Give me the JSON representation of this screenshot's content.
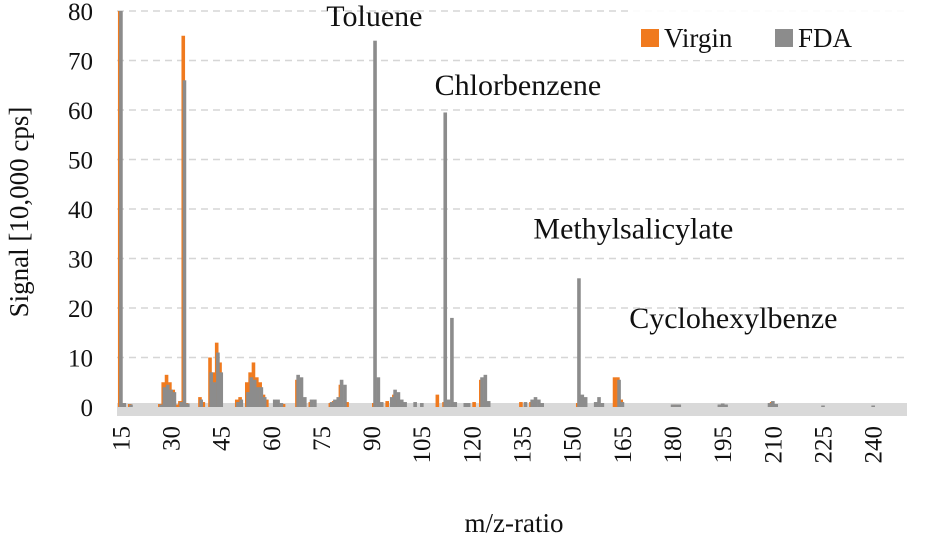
{
  "chart_data": {
    "type": "bar",
    "xlabel": "m/z-ratio",
    "ylabel": "Signal [10,000 cps]",
    "ylim": [
      0,
      80
    ],
    "xlim": [
      14,
      250
    ],
    "y_ticks": [
      "0",
      "10",
      "20",
      "30",
      "40",
      "50",
      "60",
      "70",
      "80"
    ],
    "x_ticks": [
      "15",
      "30",
      "45",
      "60",
      "75",
      "90",
      "105",
      "120",
      "135",
      "150",
      "165",
      "180",
      "195",
      "210",
      "225",
      "240"
    ],
    "grid": true,
    "legend_position": "top-right",
    "series": [
      {
        "name": "Virgin",
        "color": "#f07a1e",
        "points": [
          {
            "x": 15,
            "y": 80
          },
          {
            "x": 16,
            "y": 0.8
          },
          {
            "x": 18,
            "y": 0.6
          },
          {
            "x": 27,
            "y": 0.6
          },
          {
            "x": 28,
            "y": 5
          },
          {
            "x": 29,
            "y": 6.5
          },
          {
            "x": 30,
            "y": 5
          },
          {
            "x": 31,
            "y": 3.5
          },
          {
            "x": 32,
            "y": 0.5
          },
          {
            "x": 33,
            "y": 1.2
          },
          {
            "x": 34,
            "y": 75
          },
          {
            "x": 35,
            "y": 0.8
          },
          {
            "x": 39,
            "y": 2
          },
          {
            "x": 40,
            "y": 1
          },
          {
            "x": 42,
            "y": 10
          },
          {
            "x": 43,
            "y": 7
          },
          {
            "x": 44,
            "y": 13
          },
          {
            "x": 45,
            "y": 9
          },
          {
            "x": 50,
            "y": 1.5
          },
          {
            "x": 51,
            "y": 2
          },
          {
            "x": 53,
            "y": 5
          },
          {
            "x": 54,
            "y": 7
          },
          {
            "x": 55,
            "y": 9
          },
          {
            "x": 56,
            "y": 6
          },
          {
            "x": 57,
            "y": 5
          },
          {
            "x": 58,
            "y": 2.5
          },
          {
            "x": 59,
            "y": 1.5
          },
          {
            "x": 64,
            "y": 0.6
          },
          {
            "x": 68,
            "y": 5.5
          },
          {
            "x": 70,
            "y": 1
          },
          {
            "x": 72,
            "y": 1
          },
          {
            "x": 78,
            "y": 0.8
          },
          {
            "x": 79,
            "y": 1.2
          },
          {
            "x": 81,
            "y": 4.5
          },
          {
            "x": 83,
            "y": 1
          },
          {
            "x": 91,
            "y": 0.8
          },
          {
            "x": 95,
            "y": 1.2
          },
          {
            "x": 97,
            "y": 2.5
          },
          {
            "x": 98,
            "y": 1.5
          },
          {
            "x": 110,
            "y": 2.5
          },
          {
            "x": 112,
            "y": 1
          },
          {
            "x": 121,
            "y": 1
          },
          {
            "x": 123,
            "y": 5.5
          },
          {
            "x": 124,
            "y": 1.2
          },
          {
            "x": 135,
            "y": 1
          },
          {
            "x": 138,
            "y": 1
          },
          {
            "x": 139,
            "y": 0.8
          },
          {
            "x": 152,
            "y": 0.8
          },
          {
            "x": 163,
            "y": 6
          },
          {
            "x": 164,
            "y": 6
          },
          {
            "x": 165,
            "y": 1.5
          },
          {
            "x": 181,
            "y": 0.5
          },
          {
            "x": 195,
            "y": 0.5
          },
          {
            "x": 210,
            "y": 1
          }
        ]
      },
      {
        "name": "FDA",
        "color": "#8c8c8c",
        "points": [
          {
            "x": 15,
            "y": 80
          },
          {
            "x": 16,
            "y": 0.8
          },
          {
            "x": 18,
            "y": 0.5
          },
          {
            "x": 27,
            "y": 0.5
          },
          {
            "x": 28,
            "y": 4
          },
          {
            "x": 29,
            "y": 4.5
          },
          {
            "x": 30,
            "y": 3.5
          },
          {
            "x": 31,
            "y": 3
          },
          {
            "x": 33,
            "y": 1
          },
          {
            "x": 34,
            "y": 66
          },
          {
            "x": 35,
            "y": 0.7
          },
          {
            "x": 39,
            "y": 1.5
          },
          {
            "x": 42,
            "y": 7
          },
          {
            "x": 43,
            "y": 5
          },
          {
            "x": 44,
            "y": 11
          },
          {
            "x": 45,
            "y": 7
          },
          {
            "x": 50,
            "y": 1
          },
          {
            "x": 51,
            "y": 1.5
          },
          {
            "x": 53,
            "y": 3
          },
          {
            "x": 54,
            "y": 6
          },
          {
            "x": 55,
            "y": 5.5
          },
          {
            "x": 56,
            "y": 4
          },
          {
            "x": 57,
            "y": 4
          },
          {
            "x": 58,
            "y": 2
          },
          {
            "x": 61,
            "y": 1.5
          },
          {
            "x": 62,
            "y": 1.5
          },
          {
            "x": 63,
            "y": 0.8
          },
          {
            "x": 68,
            "y": 6.5
          },
          {
            "x": 69,
            "y": 6
          },
          {
            "x": 70,
            "y": 2
          },
          {
            "x": 72,
            "y": 1.5
          },
          {
            "x": 73,
            "y": 1.5
          },
          {
            "x": 78,
            "y": 1
          },
          {
            "x": 79,
            "y": 1.5
          },
          {
            "x": 80,
            "y": 2
          },
          {
            "x": 81,
            "y": 5.5
          },
          {
            "x": 82,
            "y": 4.5
          },
          {
            "x": 91,
            "y": 74
          },
          {
            "x": 92,
            "y": 6
          },
          {
            "x": 93,
            "y": 1
          },
          {
            "x": 96,
            "y": 2
          },
          {
            "x": 97,
            "y": 3.5
          },
          {
            "x": 98,
            "y": 3
          },
          {
            "x": 99,
            "y": 1.5
          },
          {
            "x": 100,
            "y": 1
          },
          {
            "x": 103,
            "y": 1
          },
          {
            "x": 105,
            "y": 0.8
          },
          {
            "x": 112,
            "y": 59.5
          },
          {
            "x": 113,
            "y": 1.5
          },
          {
            "x": 114,
            "y": 18
          },
          {
            "x": 115,
            "y": 1
          },
          {
            "x": 118,
            "y": 0.8
          },
          {
            "x": 119,
            "y": 0.8
          },
          {
            "x": 123,
            "y": 6
          },
          {
            "x": 124,
            "y": 6.5
          },
          {
            "x": 125,
            "y": 1.2
          },
          {
            "x": 136,
            "y": 1
          },
          {
            "x": 138,
            "y": 1.5
          },
          {
            "x": 139,
            "y": 2
          },
          {
            "x": 140,
            "y": 1.5
          },
          {
            "x": 141,
            "y": 0.8
          },
          {
            "x": 152,
            "y": 26
          },
          {
            "x": 153,
            "y": 2.5
          },
          {
            "x": 154,
            "y": 2
          },
          {
            "x": 157,
            "y": 1
          },
          {
            "x": 158,
            "y": 2
          },
          {
            "x": 159,
            "y": 0.8
          },
          {
            "x": 164,
            "y": 5.5
          },
          {
            "x": 165,
            "y": 1
          },
          {
            "x": 180,
            "y": 0.5
          },
          {
            "x": 181,
            "y": 0.5
          },
          {
            "x": 182,
            "y": 0.5
          },
          {
            "x": 194,
            "y": 0.5
          },
          {
            "x": 195,
            "y": 0.7
          },
          {
            "x": 196,
            "y": 0.5
          },
          {
            "x": 209,
            "y": 0.8
          },
          {
            "x": 210,
            "y": 1.2
          },
          {
            "x": 211,
            "y": 0.6
          },
          {
            "x": 225,
            "y": 0.3
          },
          {
            "x": 240,
            "y": 0.3
          }
        ]
      }
    ],
    "annotations": [
      {
        "text": "Toluene",
        "x": 91,
        "y": 77
      },
      {
        "text": "Chlorbenzene",
        "x": 112,
        "y": 63
      },
      {
        "text": "Methylsalicylate",
        "x": 152,
        "y": 34
      },
      {
        "text": "Cyclohexylbenze",
        "x": 166,
        "y": 16
      }
    ]
  }
}
